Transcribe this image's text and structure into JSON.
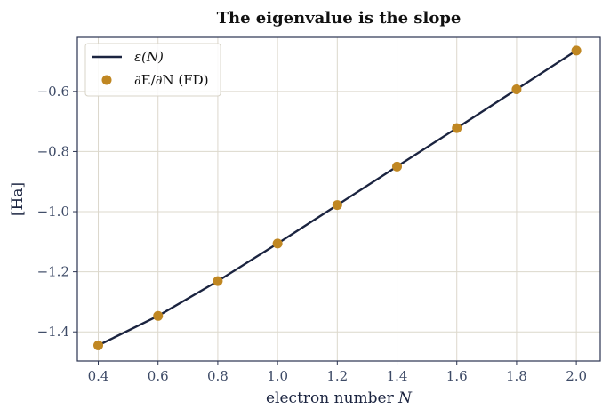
{
  "chart_data": {
    "type": "line",
    "title": "The eigenvalue is the slope",
    "xlabel": "electron number N",
    "ylabel": "[Ha]",
    "xlim": [
      0.33,
      2.08
    ],
    "ylim": [
      -1.497,
      -0.42
    ],
    "xticks": [
      0.4,
      0.6,
      0.8,
      1.0,
      1.2,
      1.4,
      1.6,
      1.8,
      2.0
    ],
    "xtick_labels": [
      "0.4",
      "0.6",
      "0.8",
      "1.0",
      "1.2",
      "1.4",
      "1.6",
      "1.8",
      "2.0"
    ],
    "yticks": [
      -1.4,
      -1.2,
      -1.0,
      -0.8,
      -0.6
    ],
    "ytick_labels": [
      "−1.4",
      "−1.2",
      "−1.0",
      "−0.8",
      "−0.6"
    ],
    "grid": true,
    "legend_position": "top-left",
    "series": [
      {
        "name": "ε(N)",
        "kind": "line",
        "color": "#1b2440",
        "x": [
          0.4,
          0.6,
          0.8,
          1.0,
          1.2,
          1.4,
          1.6,
          1.8,
          2.0
        ],
        "y": [
          -1.445,
          -1.347,
          -1.231,
          -1.106,
          -0.978,
          -0.85,
          -0.722,
          -0.593,
          -0.464
        ]
      },
      {
        "name": "∂E/∂N (FD)",
        "kind": "scatter",
        "color": "#c08722",
        "x": [
          0.4,
          0.6,
          0.8,
          1.0,
          1.2,
          1.4,
          1.6,
          1.8,
          2.0
        ],
        "y": [
          -1.445,
          -1.347,
          -1.231,
          -1.106,
          -0.978,
          -0.85,
          -0.722,
          -0.593,
          -0.464
        ]
      }
    ]
  }
}
